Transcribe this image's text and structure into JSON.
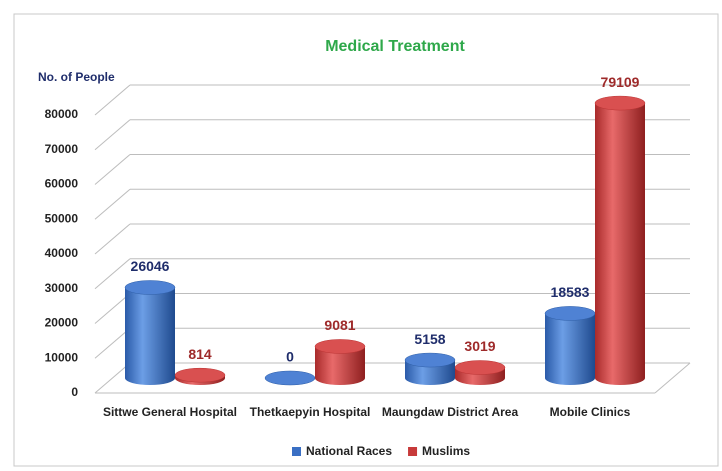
{
  "chart_data": {
    "type": "bar",
    "title": "Medical Treatment",
    "y_label": "No. of People",
    "categories": [
      "Sittwe General Hospital",
      "Thetkaepyin Hospital",
      "Maungdaw District Area",
      "Mobile Clinics"
    ],
    "series": [
      {
        "name": "National Races",
        "color": "#3a6fc4",
        "values": [
          26046,
          0,
          5158,
          18583
        ]
      },
      {
        "name": "Muslims",
        "color": "#c73a3a",
        "values": [
          814,
          9081,
          3019,
          79109
        ]
      }
    ],
    "ylim": [
      0,
      80000
    ],
    "yticks": [
      0,
      10000,
      20000,
      30000,
      40000,
      50000,
      60000,
      70000,
      80000
    ],
    "grid": true
  }
}
